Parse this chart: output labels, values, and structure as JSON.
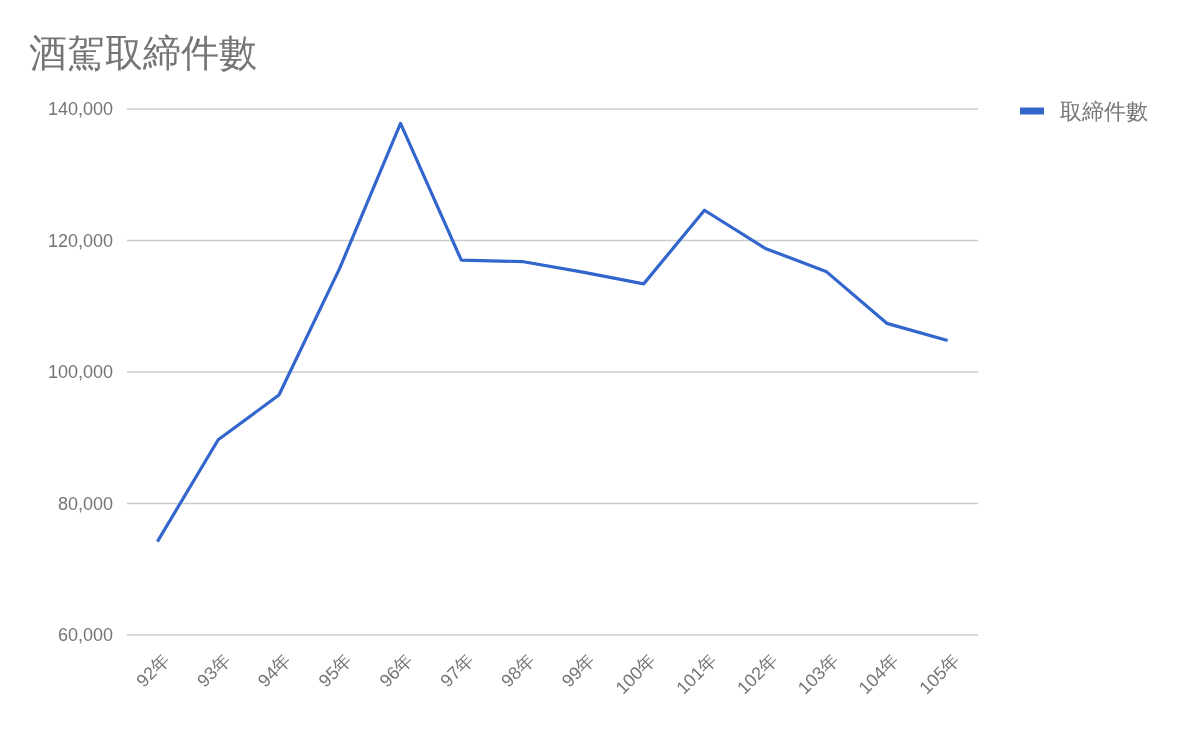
{
  "chart_data": {
    "type": "line",
    "title": "酒駕取締件數",
    "categories": [
      "92年",
      "93年",
      "94年",
      "95年",
      "96年",
      "97年",
      "98年",
      "99年",
      "100年",
      "101年",
      "102年",
      "103年",
      "104年",
      "105年"
    ],
    "series": [
      {
        "name": "取締件數",
        "color": "#3366cc",
        "values": [
          74200,
          89700,
          96500,
          115800,
          137800,
          117000,
          116800,
          115200,
          113400,
          124600,
          118800,
          115300,
          107400,
          104800
        ]
      }
    ],
    "ylim": [
      60000,
      140000
    ],
    "yticks": [
      {
        "value": 60000,
        "label": "60,000"
      },
      {
        "value": 80000,
        "label": "80,000"
      },
      {
        "value": 100000,
        "label": "100,000"
      },
      {
        "value": 120000,
        "label": "120,000"
      },
      {
        "value": 140000,
        "label": "140,000"
      }
    ],
    "grid": "y",
    "legend": "right",
    "line_style": "solid"
  }
}
